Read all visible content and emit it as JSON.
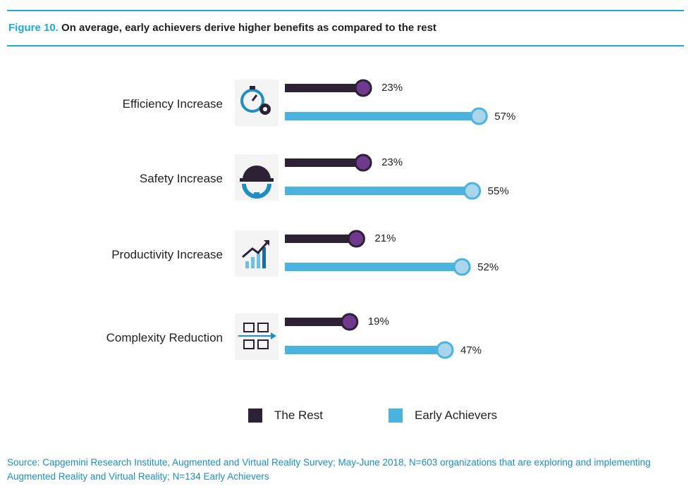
{
  "header": {
    "figure_label": "Figure 10.",
    "title": "On average, early achievers derive higher benefits as compared to the rest"
  },
  "chart_data": {
    "type": "bar",
    "orientation": "horizontal",
    "categories": [
      "Efficiency Increase",
      "Safety Increase",
      "Productivity Increase",
      "Complexity Reduction"
    ],
    "category_icons": [
      "stopwatch-gear-icon",
      "hardhat-gear-icon",
      "growth-bars-icon",
      "flowchart-arrow-icon"
    ],
    "series": [
      {
        "name": "The Rest",
        "values": [
          23,
          23,
          21,
          19
        ],
        "labels": [
          "23%",
          "23%",
          "21%",
          "19%"
        ],
        "color": "#2d2135",
        "marker_color": "#6f3a8e"
      },
      {
        "name": "Early Achievers",
        "values": [
          57,
          55,
          52,
          47
        ],
        "labels": [
          "57%",
          "55%",
          "52%",
          "47%"
        ],
        "color": "#4ab3de",
        "marker_color": "#a9d6eb"
      }
    ],
    "value_unit": "%",
    "xlim": [
      0,
      60
    ],
    "grid": false,
    "legend_position": "bottom"
  },
  "legend": {
    "items": [
      {
        "label": "The Rest",
        "color": "#2d2135"
      },
      {
        "label": "Early Achievers",
        "color": "#4ab3de"
      }
    ]
  },
  "footer": {
    "source": "Source: Capgemini Research Institute, Augmented and Virtual Reality Survey; May-June 2018, N=603 organizations that are exploring and implementing Augmented Reality and Virtual Reality; N=134 Early Achievers"
  }
}
